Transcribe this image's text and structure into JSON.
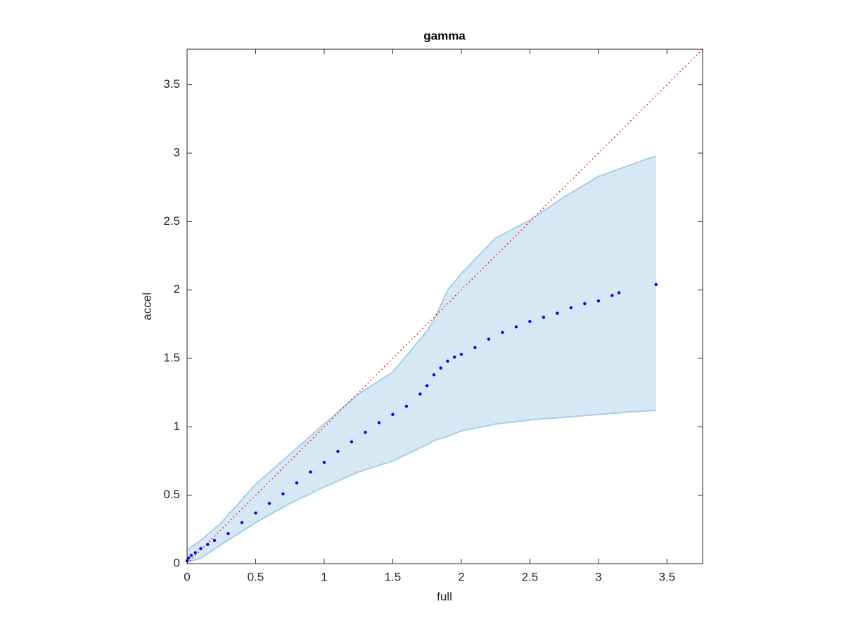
{
  "chart_data": {
    "type": "scatter",
    "title": "gamma",
    "x_label": "full",
    "y_label": "accel",
    "xlim": [
      0,
      3.76
    ],
    "ylim": [
      0,
      3.76
    ],
    "xticks": [
      0,
      0.5,
      1,
      1.5,
      2,
      2.5,
      3,
      3.5
    ],
    "yticks": [
      0,
      0.5,
      1,
      1.5,
      2,
      2.5,
      3,
      3.5
    ],
    "band": {
      "color": "#a6cde9",
      "x": [
        0,
        0.1,
        0.25,
        0.5,
        0.75,
        1.0,
        1.25,
        1.5,
        1.75,
        1.8,
        1.9,
        2.0,
        2.25,
        2.5,
        2.75,
        3.0,
        3.25,
        3.42
      ],
      "upper": [
        0.1,
        0.17,
        0.3,
        0.58,
        0.8,
        1.02,
        1.24,
        1.4,
        1.7,
        1.78,
        2.0,
        2.12,
        2.38,
        2.51,
        2.68,
        2.83,
        2.92,
        2.98
      ],
      "lower": [
        0.01,
        0.04,
        0.14,
        0.3,
        0.44,
        0.56,
        0.67,
        0.75,
        0.87,
        0.9,
        0.93,
        0.97,
        1.02,
        1.05,
        1.07,
        1.09,
        1.11,
        1.12
      ]
    },
    "reference_line": {
      "color": "#ff0000",
      "x": [
        0,
        3.76
      ],
      "y": [
        0,
        3.76
      ]
    },
    "series": [
      {
        "color": "#0000ff",
        "x": [
          0,
          0.01,
          0.03,
          0.06,
          0.1,
          0.15,
          0.2,
          0.3,
          0.4,
          0.5,
          0.6,
          0.7,
          0.8,
          0.9,
          1.0,
          1.1,
          1.2,
          1.3,
          1.4,
          1.5,
          1.6,
          1.7,
          1.75,
          1.8,
          1.85,
          1.9,
          1.95,
          2.0,
          2.1,
          2.2,
          2.3,
          2.4,
          2.5,
          2.6,
          2.7,
          2.8,
          2.9,
          3.0,
          3.1,
          3.15,
          3.42
        ],
        "values": [
          0.02,
          0.04,
          0.06,
          0.08,
          0.11,
          0.14,
          0.17,
          0.22,
          0.3,
          0.37,
          0.44,
          0.51,
          0.59,
          0.67,
          0.74,
          0.82,
          0.89,
          0.96,
          1.03,
          1.09,
          1.15,
          1.24,
          1.3,
          1.38,
          1.43,
          1.48,
          1.51,
          1.53,
          1.58,
          1.64,
          1.69,
          1.73,
          1.77,
          1.8,
          1.83,
          1.87,
          1.9,
          1.92,
          1.96,
          1.98,
          2.04
        ]
      }
    ]
  }
}
